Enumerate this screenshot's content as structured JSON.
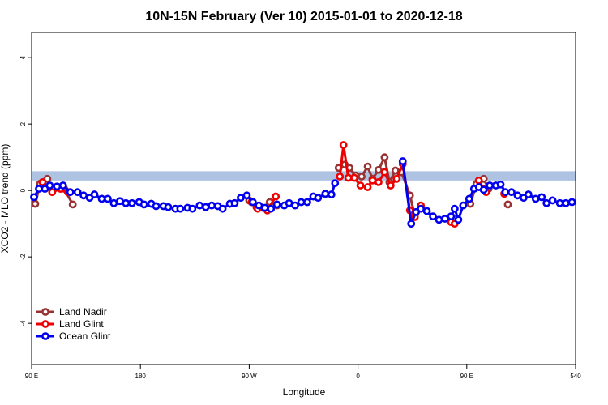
{
  "chart_data": {
    "type": "line",
    "title": "10N-15N February (Ver 10)   2015-01-01 to 2020-12-18",
    "x_label": "Longitude",
    "y_label": "XCO2 - MLO trend (ppm)",
    "xlim": [
      90,
      540
    ],
    "xticks": [
      {
        "value": 90,
        "label": "90 E"
      },
      180,
      {
        "value": 270,
        "label": "90 W"
      },
      {
        "value": 360,
        "label": "0"
      },
      {
        "value": 450,
        "label": "90 E"
      },
      540
    ],
    "ylim": [
      -5.24,
      4.76
    ],
    "yticks": [
      -4,
      -2,
      0,
      2,
      4
    ],
    "shaded_band": [
      0.3,
      0.58
    ],
    "shaded_band_color": "#aec2e2",
    "legend": "bottomleft",
    "series": [
      {
        "name": "Land Nadir",
        "color": "#993333",
        "x": [
          93,
          97,
          103,
          107,
          112,
          117,
          124,
          null,
          270,
          276,
          281,
          287,
          293,
          null,
          344,
          349,
          353,
          358,
          363,
          368,
          372,
          377,
          382,
          386,
          391,
          396,
          403,
          407,
          412,
          null,
          437,
          441,
          null,
          453,
          458,
          464,
          468,
          null,
          484
        ],
        "values": [
          -0.4,
          0.2,
          0.35,
          0.05,
          0.1,
          0.05,
          -0.42,
          null,
          -0.3,
          -0.5,
          -0.52,
          -0.35,
          -0.45,
          null,
          0.68,
          0.78,
          0.68,
          0.45,
          0.42,
          0.72,
          0.35,
          0.62,
          1.0,
          0.25,
          0.6,
          0.55,
          -0.15,
          -0.75,
          -0.5,
          null,
          -0.85,
          -0.85,
          null,
          -0.4,
          0.2,
          0.35,
          0.05,
          null,
          -0.42
        ]
      },
      {
        "name": "Land Glint",
        "color": "#ee0000",
        "x": [
          99,
          103,
          107,
          114,
          120,
          null,
          272,
          277,
          285,
          292,
          null,
          345,
          348,
          352,
          357,
          362,
          368,
          372,
          377,
          382,
          387,
          392,
          397,
          403,
          407,
          412,
          null,
          437,
          440,
          null,
          460,
          464,
          466,
          null,
          481
        ],
        "values": [
          0.25,
          0.1,
          -0.05,
          0.05,
          -0.05,
          null,
          -0.35,
          -0.55,
          -0.6,
          -0.18,
          null,
          0.42,
          1.37,
          0.38,
          0.38,
          0.15,
          0.1,
          0.3,
          0.25,
          0.55,
          0.15,
          0.35,
          0.8,
          -0.6,
          -0.8,
          -0.45,
          null,
          -0.95,
          -1.0,
          null,
          0.3,
          0.05,
          -0.05,
          null,
          -0.1
        ]
      },
      {
        "name": "Ocean Glint",
        "color": "#0000ee",
        "x": [
          92,
          96,
          101,
          105,
          111,
          116,
          122,
          128,
          133,
          138,
          142,
          148,
          153,
          158,
          163,
          168,
          173,
          179,
          183,
          189,
          193,
          199,
          203,
          209,
          213,
          219,
          223,
          229,
          234,
          239,
          244,
          248,
          254,
          258,
          263,
          268,
          273,
          278,
          283,
          288,
          293,
          299,
          303,
          308,
          313,
          318,
          323,
          327,
          333,
          338,
          341,
          null,
          397,
          404,
          408,
          412,
          417,
          422,
          427,
          432,
          437,
          440,
          443,
          447,
          452,
          456,
          460,
          464,
          469,
          474,
          478,
          482,
          487,
          492,
          497,
          501,
          507,
          512,
          516,
          521,
          527,
          532,
          537
        ],
        "values": [
          -0.2,
          0.05,
          0.05,
          0.15,
          0.12,
          0.15,
          -0.05,
          -0.05,
          -0.15,
          -0.22,
          -0.12,
          -0.25,
          -0.25,
          -0.38,
          -0.32,
          -0.38,
          -0.38,
          -0.35,
          -0.42,
          -0.4,
          -0.47,
          -0.47,
          -0.5,
          -0.55,
          -0.55,
          -0.52,
          -0.55,
          -0.45,
          -0.5,
          -0.45,
          -0.47,
          -0.55,
          -0.4,
          -0.38,
          -0.22,
          -0.15,
          -0.35,
          -0.45,
          -0.52,
          -0.55,
          -0.42,
          -0.45,
          -0.38,
          -0.45,
          -0.35,
          -0.35,
          -0.18,
          -0.22,
          -0.1,
          -0.12,
          0.22,
          null,
          0.88,
          -1.0,
          -0.65,
          -0.55,
          -0.62,
          -0.78,
          -0.88,
          -0.85,
          -0.78,
          -0.55,
          -0.88,
          -0.45,
          -0.25,
          0.05,
          0.1,
          0.02,
          0.15,
          0.15,
          0.18,
          -0.05,
          -0.05,
          -0.15,
          -0.22,
          -0.12,
          -0.25,
          -0.2,
          -0.38,
          -0.3,
          -0.38,
          -0.38,
          -0.35
        ]
      }
    ]
  }
}
